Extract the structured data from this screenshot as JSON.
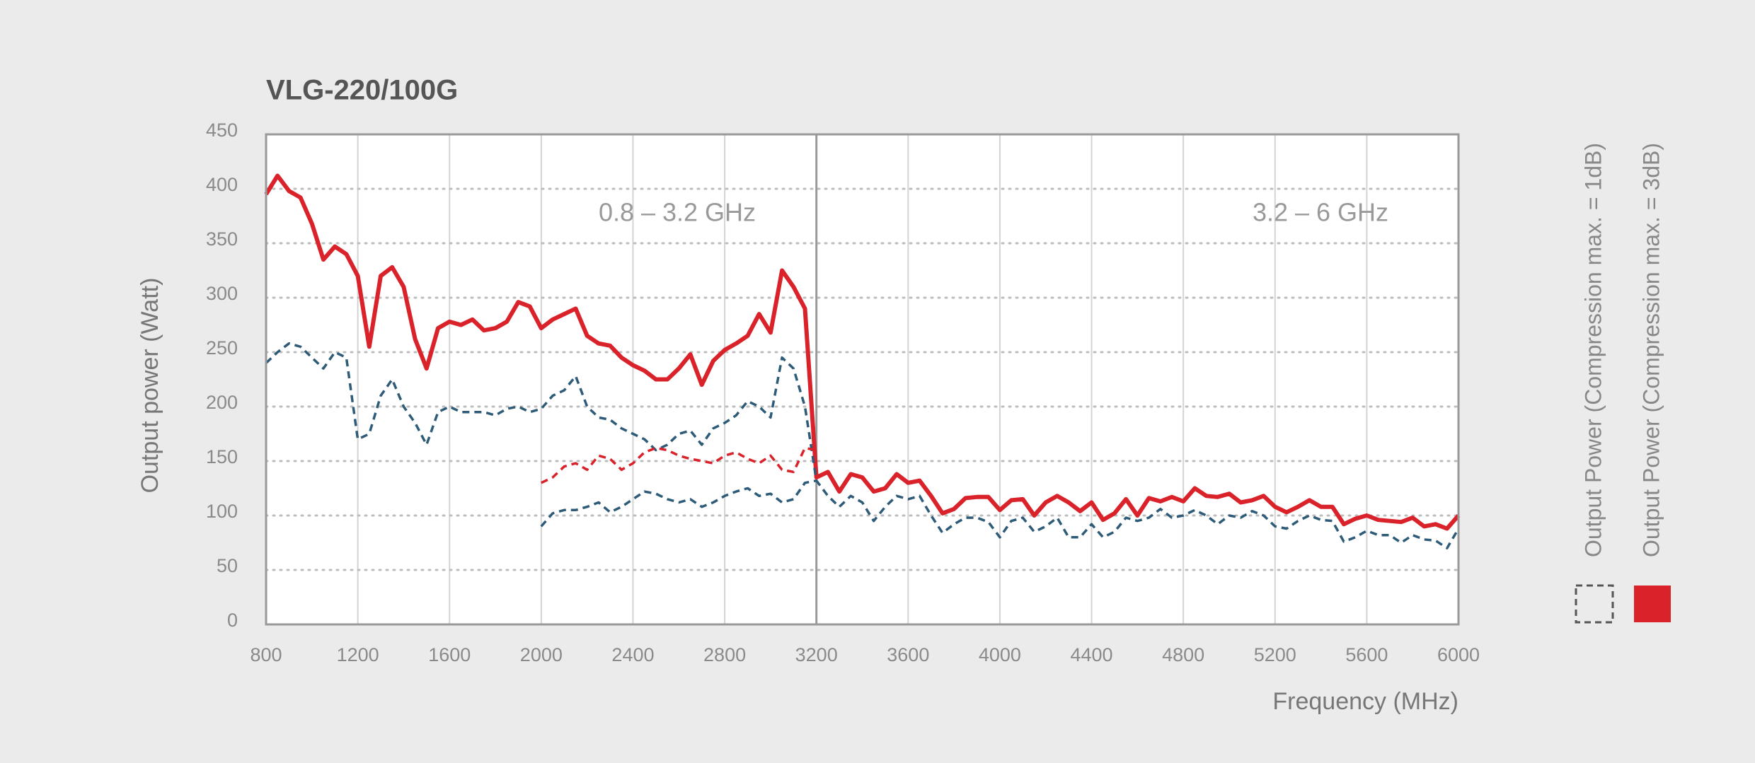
{
  "chart_data": {
    "type": "line",
    "title": "VLG-220/100G",
    "x_label": "Frequency (MHz)",
    "y_label": "Output power (Watt)",
    "annotations": [
      "0.8 – 3.2 GHz",
      "3.2 – 6 GHz"
    ],
    "divider_x": 3200,
    "xlim": [
      800,
      6000
    ],
    "xticks": [
      800,
      1200,
      1600,
      2000,
      2400,
      2800,
      3200,
      3600,
      4000,
      4400,
      4800,
      5200,
      5600,
      6000
    ],
    "ylim": [
      0,
      450
    ],
    "yticks": [
      0,
      50,
      100,
      150,
      200,
      250,
      300,
      350,
      400,
      450
    ],
    "grid": true,
    "legend": [
      {
        "name": "Output Power (Compression max. = 1dB)",
        "color": "#555555",
        "dashed": true
      },
      {
        "name": "Output Power (Compression max. = 3dB)",
        "color": "#d9222a",
        "dashed": false
      }
    ],
    "series": [
      {
        "color": "#d9222a",
        "dashed": false,
        "x": [
          800,
          850,
          900,
          950,
          1000,
          1050,
          1100,
          1150,
          1200,
          1250,
          1300,
          1350,
          1400,
          1450,
          1500,
          1550,
          1600,
          1650,
          1700,
          1750,
          1800,
          1850,
          1900,
          1950,
          2000,
          2050,
          2100,
          2150,
          2200,
          2250,
          2300,
          2350,
          2400,
          2450,
          2500,
          2550,
          2600,
          2650,
          2700,
          2750,
          2800,
          2850,
          2900,
          2950,
          3000,
          3050,
          3100,
          3150,
          3200,
          3250,
          3300,
          3350,
          3400,
          3450,
          3500,
          3550,
          3600,
          3650,
          3700,
          3750,
          3800,
          3850,
          3900,
          3950,
          4000,
          4050,
          4100,
          4150,
          4200,
          4250,
          4300,
          4350,
          4400,
          4450,
          4500,
          4550,
          4600,
          4650,
          4700,
          4750,
          4800,
          4850,
          4900,
          4950,
          5000,
          5050,
          5100,
          5150,
          5200,
          5250,
          5300,
          5350,
          5400,
          5450,
          5500,
          5550,
          5600,
          5650,
          5700,
          5750,
          5800,
          5850,
          5900,
          5950,
          6000
        ],
        "values": [
          395,
          412,
          398,
          392,
          368,
          335,
          347,
          340,
          320,
          255,
          320,
          328,
          310,
          262,
          235,
          272,
          278,
          275,
          280,
          270,
          272,
          278,
          296,
          292,
          272,
          280,
          285,
          290,
          265,
          258,
          256,
          245,
          238,
          233,
          225,
          225,
          235,
          248,
          220,
          242,
          252,
          258,
          265,
          285,
          268,
          325,
          310,
          290,
          135,
          140,
          122,
          138,
          135,
          122,
          125,
          138,
          130,
          132,
          118,
          102,
          106,
          116,
          117,
          117,
          105,
          114,
          115,
          100,
          112,
          118,
          112,
          104,
          112,
          96,
          102,
          115,
          100,
          116,
          113,
          117,
          113,
          125,
          118,
          117,
          120,
          112,
          114,
          118,
          108,
          103,
          108,
          114,
          108,
          108,
          92,
          97,
          100,
          96,
          95,
          94,
          98,
          90,
          92,
          88,
          100
        ]
      },
      {
        "color": "#2e5b78",
        "dashed": true,
        "x": [
          800,
          850,
          900,
          950,
          1000,
          1050,
          1100,
          1150,
          1200,
          1250,
          1300,
          1350,
          1400,
          1450,
          1500,
          1550,
          1600,
          1650,
          1700,
          1750,
          1800,
          1850,
          1900,
          1950,
          2000,
          2050,
          2100,
          2150,
          2200,
          2250,
          2300,
          2350,
          2400,
          2450,
          2500,
          2550,
          2600,
          2650,
          2700,
          2750,
          2800,
          2850,
          2900,
          2950,
          3000,
          3050,
          3100,
          3150,
          3200,
          3250,
          3300,
          3350,
          3400,
          3450,
          3500,
          3550,
          3600,
          3650,
          3700,
          3750,
          3800,
          3850,
          3900,
          3950,
          4000,
          4050,
          4100,
          4150,
          4200,
          4250,
          4300,
          4350,
          4400,
          4450,
          4500,
          4550,
          4600,
          4650,
          4700,
          4750,
          4800,
          4850,
          4900,
          4950,
          5000,
          5050,
          5100,
          5150,
          5200,
          5250,
          5300,
          5350,
          5400,
          5450,
          5500,
          5550,
          5600,
          5650,
          5700,
          5750,
          5800,
          5850,
          5900,
          5950,
          6000
        ],
        "values": [
          240,
          250,
          258,
          255,
          245,
          235,
          250,
          245,
          170,
          175,
          210,
          225,
          200,
          185,
          165,
          195,
          200,
          195,
          195,
          195,
          192,
          198,
          200,
          195,
          198,
          210,
          215,
          228,
          200,
          190,
          188,
          180,
          175,
          170,
          160,
          165,
          175,
          178,
          165,
          180,
          185,
          192,
          205,
          200,
          190,
          245,
          235,
          200,
          132,
          118,
          108,
          118,
          112,
          95,
          108,
          118,
          115,
          118,
          100,
          84,
          92,
          98,
          98,
          94,
          80,
          95,
          98,
          85,
          90,
          98,
          80,
          80,
          92,
          80,
          85,
          98,
          95,
          98,
          106,
          98,
          100,
          105,
          100,
          92,
          100,
          98,
          104,
          100,
          90,
          88,
          95,
          100,
          96,
          95,
          76,
          80,
          86,
          82,
          82,
          75,
          82,
          78,
          77,
          70,
          88
        ]
      },
      {
        "color": "#d9222a",
        "dashed": true,
        "x": [
          2000,
          2050,
          2100,
          2150,
          2200,
          2250,
          2300,
          2350,
          2400,
          2450,
          2500,
          2550,
          2600,
          2650,
          2700,
          2750,
          2800,
          2850,
          2900,
          2950,
          3000,
          3050,
          3100,
          3150,
          3200
        ],
        "values": [
          130,
          135,
          145,
          148,
          142,
          155,
          152,
          142,
          148,
          158,
          162,
          160,
          155,
          152,
          150,
          148,
          155,
          158,
          152,
          148,
          155,
          142,
          140,
          162,
          160
        ]
      },
      {
        "color": "#2e5b78",
        "dashed": true,
        "x": [
          2000,
          2050,
          2100,
          2150,
          2200,
          2250,
          2300,
          2350,
          2400,
          2450,
          2500,
          2550,
          2600,
          2650,
          2700,
          2750,
          2800,
          2850,
          2900,
          2950,
          3000,
          3050,
          3100,
          3150,
          3200
        ],
        "values": [
          90,
          102,
          105,
          105,
          108,
          112,
          103,
          108,
          115,
          122,
          120,
          115,
          112,
          115,
          108,
          112,
          118,
          122,
          125,
          118,
          120,
          112,
          115,
          130,
          132
        ]
      }
    ]
  }
}
